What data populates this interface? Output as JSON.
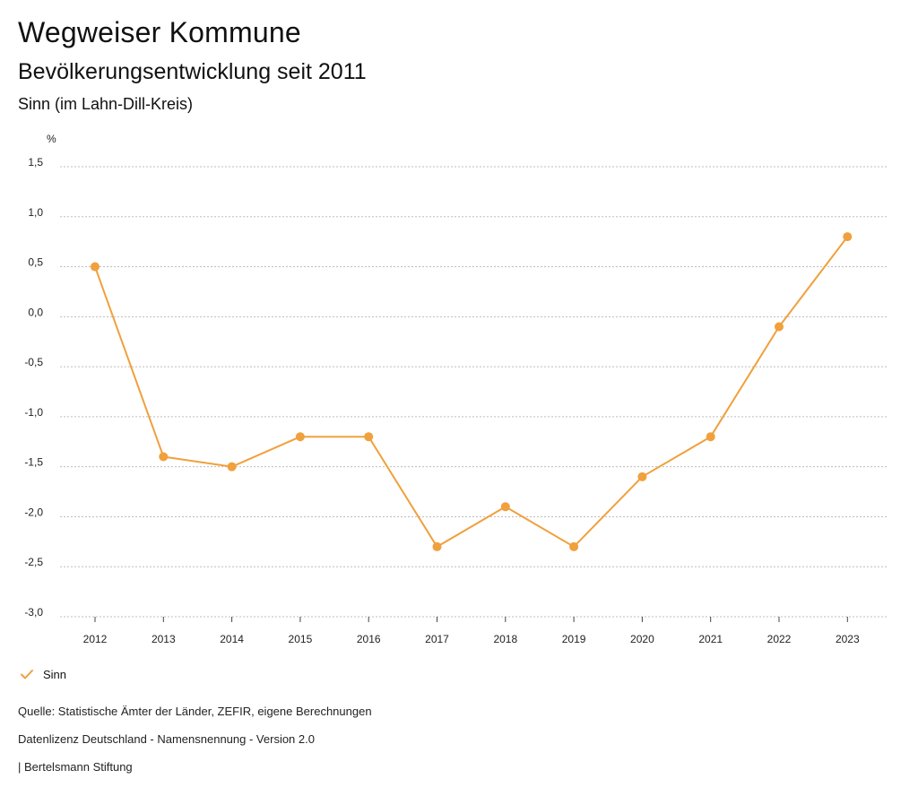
{
  "header": {
    "title": "Wegweiser Kommune",
    "subtitle": "Bevölkerungsentwicklung seit 2011",
    "region": "Sinn (im Lahn-Dill-Kreis)"
  },
  "colors": {
    "series": "#f0a03c",
    "grid": "#bdbdbd"
  },
  "chart_data": {
    "type": "line",
    "title": "Bevölkerungsentwicklung seit 2011",
    "xlabel": "",
    "ylabel": "%",
    "categories": [
      "2012",
      "2013",
      "2014",
      "2015",
      "2016",
      "2017",
      "2018",
      "2019",
      "2020",
      "2021",
      "2022",
      "2023"
    ],
    "series": [
      {
        "name": "Sinn",
        "values": [
          0.5,
          -1.4,
          -1.5,
          -1.2,
          -1.2,
          -2.3,
          -1.9,
          -2.3,
          -1.6,
          -1.2,
          -0.1,
          0.8
        ]
      }
    ],
    "ylim": [
      -3.0,
      1.5
    ],
    "yticks": [
      1.5,
      1.0,
      0.5,
      0.0,
      -0.5,
      -1.0,
      -1.5,
      -2.0,
      -2.5,
      -3.0
    ],
    "ytick_labels": [
      "1,5",
      "1,0",
      "0,5",
      "0,0",
      "-0,5",
      "-1,0",
      "-1,5",
      "-2,0",
      "-2,5",
      "-3,0"
    ],
    "grid": true,
    "legend": "bottom-left"
  },
  "legend": {
    "label": "Sinn",
    "icon": "check-icon"
  },
  "footer": {
    "source": "Quelle: Statistische Ämter der Länder, ZEFIR, eigene Berechnungen",
    "license": "Datenlizenz Deutschland - Namensnennung - Version 2.0",
    "publisher": "| Bertelsmann Stiftung"
  }
}
